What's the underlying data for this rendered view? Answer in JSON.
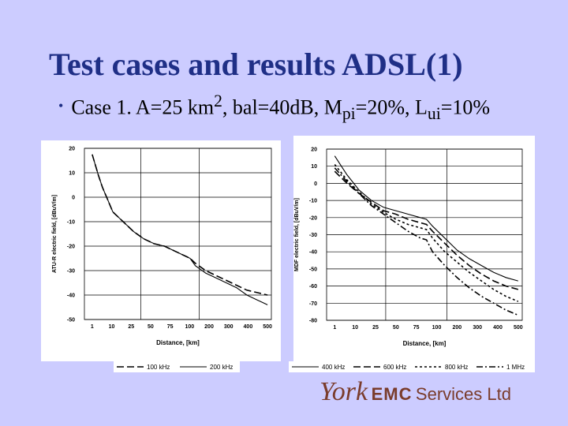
{
  "slide": {
    "title": "Test cases and results ADSL(1)",
    "bullet": {
      "pre": "Case 1. A=25 km",
      "sup1": "2",
      "mid": ", bal=40dB, M",
      "sub1": "pi",
      "mid2": "=20%, L",
      "sub2": "ui",
      "post": "=10%"
    }
  },
  "logo": {
    "york": "York",
    "emc": "EMC",
    "services": "Services Ltd"
  },
  "chart_data": [
    {
      "type": "line",
      "ylabel": "ATU-R electric field, [dBuV/m]",
      "xlabel": "Distance, [km]",
      "x_ticks": [
        "1",
        "10",
        "25",
        "50",
        "75",
        "100",
        "200",
        "300",
        "400",
        "500"
      ],
      "y_ticks": [
        20,
        10,
        0,
        -10,
        -20,
        -30,
        -40,
        -50
      ],
      "ylim": [
        -50,
        20
      ],
      "vgrid_after": [
        2,
        5
      ],
      "legend_position": "bottom",
      "series": [
        {
          "name": "100 kHz",
          "dash": "9,4",
          "values": [
            [
              0,
              17.5
            ],
            [
              0.6,
              9
            ],
            [
              1,
              4
            ],
            [
              1.5,
              -1
            ],
            [
              2,
              -6
            ],
            [
              3,
              -10
            ],
            [
              4,
              -14
            ],
            [
              5,
              -17
            ],
            [
              6,
              -19
            ],
            [
              7,
              -20
            ],
            [
              8,
              -22
            ],
            [
              9,
              -24
            ],
            [
              9.5,
              -25
            ],
            [
              10,
              -27
            ],
            [
              11,
              -30
            ],
            [
              12,
              -32
            ],
            [
              13,
              -34
            ],
            [
              14,
              -36
            ],
            [
              15,
              -38
            ],
            [
              16,
              -39
            ],
            [
              17,
              -40
            ]
          ]
        },
        {
          "name": "200 kHz",
          "dash": "",
          "values": [
            [
              0,
              17.5
            ],
            [
              0.6,
              9
            ],
            [
              1,
              4
            ],
            [
              1.5,
              -1
            ],
            [
              2,
              -6
            ],
            [
              3,
              -10
            ],
            [
              4,
              -14
            ],
            [
              5,
              -17
            ],
            [
              6,
              -19
            ],
            [
              7,
              -20
            ],
            [
              8,
              -22
            ],
            [
              9,
              -24
            ],
            [
              9.5,
              -25
            ],
            [
              10,
              -28
            ],
            [
              11,
              -31
            ],
            [
              12,
              -33
            ],
            [
              13,
              -35
            ],
            [
              14,
              -37
            ],
            [
              15,
              -40
            ],
            [
              16,
              -42
            ],
            [
              17,
              -44
            ]
          ]
        }
      ]
    },
    {
      "type": "line",
      "ylabel": "MDF electric field, [dBuV/m]",
      "xlabel": "Distance, [km]",
      "x_ticks": [
        "1",
        "10",
        "25",
        "50",
        "75",
        "100",
        "200",
        "300",
        "400",
        "500"
      ],
      "y_ticks": [
        20,
        10,
        0,
        -10,
        -20,
        -30,
        -40,
        -50,
        -60,
        -70,
        -80
      ],
      "ylim": [
        -80,
        20
      ],
      "vgrid_after": [
        2,
        5
      ],
      "legend_position": "bottom",
      "series": [
        {
          "name": "400 kHz",
          "dash": "",
          "values": [
            [
              0,
              16
            ],
            [
              1,
              5
            ],
            [
              2,
              -4
            ],
            [
              3,
              -10
            ],
            [
              4,
              -14
            ],
            [
              5,
              -16
            ],
            [
              6,
              -18
            ],
            [
              7,
              -20
            ],
            [
              7.5,
              -21
            ],
            [
              8,
              -25
            ],
            [
              9,
              -32
            ],
            [
              10,
              -39
            ],
            [
              11,
              -44
            ],
            [
              12,
              -48
            ],
            [
              13,
              -52
            ],
            [
              14,
              -55
            ],
            [
              15,
              -57
            ]
          ]
        },
        {
          "name": "600 kHz",
          "dash": "9,4",
          "values": [
            [
              0,
              7
            ],
            [
              1,
              0
            ],
            [
              2,
              -6
            ],
            [
              3,
              -11
            ],
            [
              4,
              -16
            ],
            [
              5,
              -18
            ],
            [
              6,
              -21
            ],
            [
              7,
              -23
            ],
            [
              7.5,
              -24
            ],
            [
              8,
              -28
            ],
            [
              9,
              -35
            ],
            [
              10,
              -42
            ],
            [
              11,
              -48
            ],
            [
              12,
              -53
            ],
            [
              13,
              -57
            ],
            [
              14,
              -60
            ],
            [
              15,
              -62
            ]
          ]
        },
        {
          "name": "800 kHz",
          "dash": "3,3",
          "values": [
            [
              0,
              11
            ],
            [
              1,
              2
            ],
            [
              2,
              -5
            ],
            [
              3,
              -12
            ],
            [
              4,
              -17
            ],
            [
              5,
              -21
            ],
            [
              6,
              -24
            ],
            [
              7,
              -26
            ],
            [
              7.5,
              -27
            ],
            [
              8,
              -32
            ],
            [
              9,
              -40
            ],
            [
              10,
              -46
            ],
            [
              11,
              -52
            ],
            [
              12,
              -57
            ],
            [
              13,
              -62
            ],
            [
              14,
              -66
            ],
            [
              15,
              -69
            ]
          ]
        },
        {
          "name": "1 MHz",
          "dash": "8,3,2,3",
          "values": [
            [
              0,
              9
            ],
            [
              1,
              1
            ],
            [
              2,
              -6
            ],
            [
              3,
              -13
            ],
            [
              4,
              -18
            ],
            [
              5,
              -23
            ],
            [
              6,
              -28
            ],
            [
              7,
              -32
            ],
            [
              7.5,
              -33
            ],
            [
              8,
              -40
            ],
            [
              9,
              -48
            ],
            [
              10,
              -55
            ],
            [
              11,
              -61
            ],
            [
              12,
              -66
            ],
            [
              13,
              -70
            ],
            [
              14,
              -74
            ],
            [
              15,
              -77
            ]
          ]
        }
      ]
    }
  ]
}
